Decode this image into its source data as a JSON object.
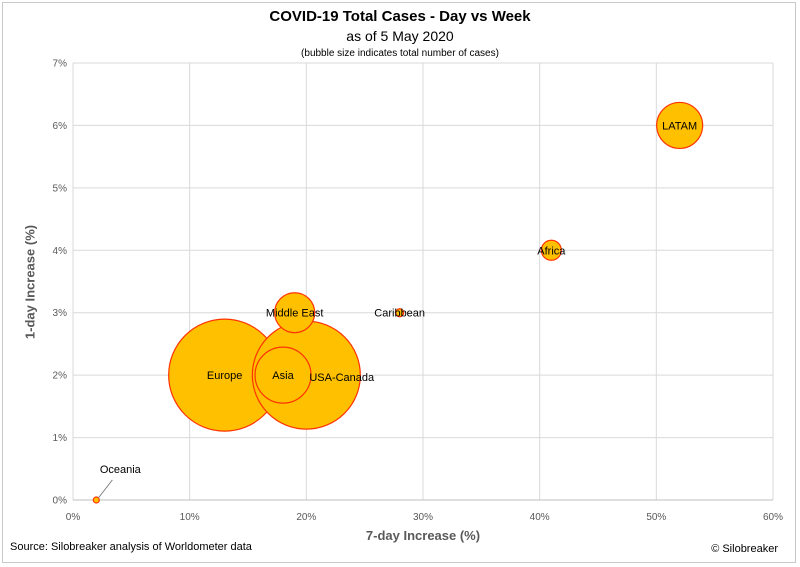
{
  "chart_data": {
    "type": "scatter",
    "title": "COVID-19 Total Cases - Day vs Week",
    "subtitle": "as of 5 May 2020",
    "note": "(bubble size indicates total number of cases)",
    "xlabel": "7-day Increase (%)",
    "ylabel": "1-day Increase (%)",
    "xlim": [
      0,
      60
    ],
    "ylim": [
      0,
      7
    ],
    "x_ticks": [
      "0%",
      "10%",
      "20%",
      "30%",
      "40%",
      "50%",
      "60%"
    ],
    "y_ticks": [
      "0%",
      "1%",
      "2%",
      "3%",
      "4%",
      "5%",
      "6%",
      "7%"
    ],
    "grid": true,
    "bubble_fill": "#FFC000",
    "bubble_stroke": "#FF3300",
    "points": [
      {
        "label": "Europe",
        "x": 13,
        "y": 2.0,
        "size": 56
      },
      {
        "label": "USA-Canada",
        "x": 20,
        "y": 2.0,
        "size": 54
      },
      {
        "label": "Asia",
        "x": 18,
        "y": 2.0,
        "size": 28
      },
      {
        "label": "Middle East",
        "x": 19,
        "y": 3.0,
        "size": 20
      },
      {
        "label": "LATAM",
        "x": 52,
        "y": 6.0,
        "size": 23
      },
      {
        "label": "Africa",
        "x": 41,
        "y": 4.0,
        "size": 10
      },
      {
        "label": "Caribbean",
        "x": 28,
        "y": 3.0,
        "size": 4
      },
      {
        "label": "Oceania",
        "x": 2,
        "y": 0.0,
        "size": 3
      }
    ]
  },
  "footer": {
    "source": "Source: Silobreaker analysis of Worldometer data",
    "copyright": "© Silobreaker"
  }
}
